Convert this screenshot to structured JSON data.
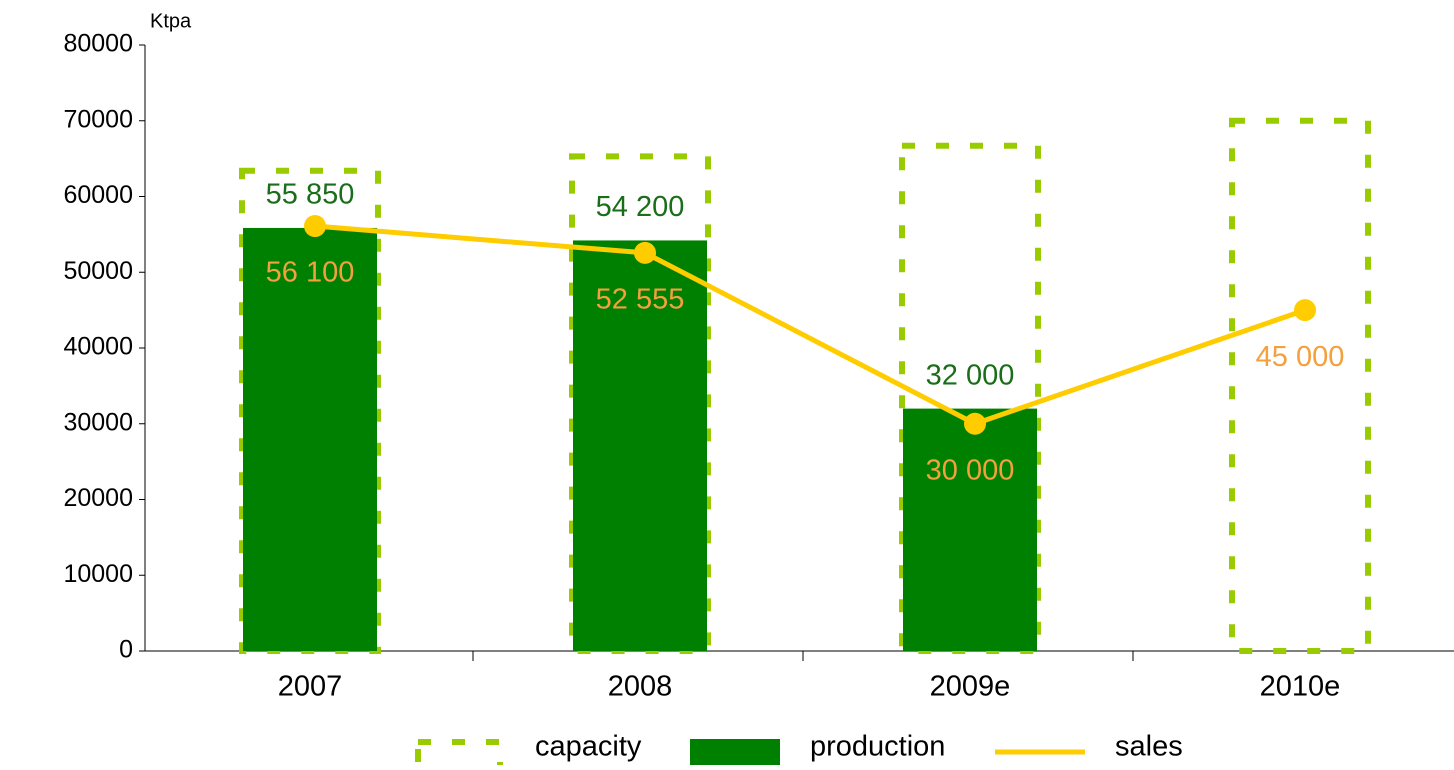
{
  "chart_data": {
    "type": "bar_line",
    "y_unit_label": "Ktpa",
    "categories": [
      "2007",
      "2008",
      "2009e",
      "2010e"
    ],
    "series": [
      {
        "name": "capacity",
        "type": "dashed_bar",
        "color": "#99cc00",
        "values": [
          63400,
          65300,
          66700,
          70000
        ]
      },
      {
        "name": "production",
        "type": "bar",
        "color": "#008000",
        "label_color": "#1a6e1a",
        "values": [
          55850,
          54200,
          32000,
          null
        ],
        "value_labels": [
          "55 850",
          "54 200",
          "32 000",
          null
        ]
      },
      {
        "name": "sales",
        "type": "line",
        "color": "#ffcc00",
        "label_color": "#f4a03c",
        "values": [
          56100,
          52555,
          30000,
          45000
        ],
        "value_labels": [
          "56 100",
          "52 555",
          "30 000",
          "45 000"
        ]
      }
    ],
    "ylim": [
      0,
      80000
    ],
    "yticks": [
      0,
      10000,
      20000,
      30000,
      40000,
      50000,
      60000,
      70000,
      80000
    ],
    "legend": "bottom"
  }
}
